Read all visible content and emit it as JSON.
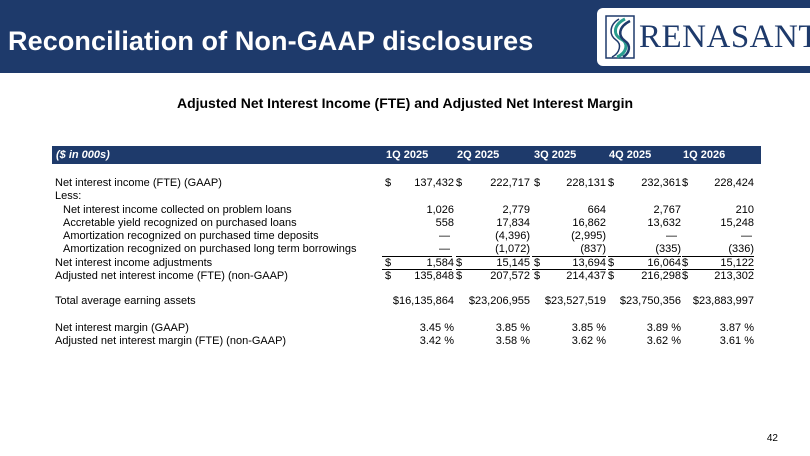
{
  "header": {
    "title": "Reconciliation of Non-GAAP disclosures",
    "logo_text": "RENASANT",
    "logo_icon": "renasant-logo-icon",
    "colors": {
      "header_bg": "#1e3a6b",
      "logo_accent": "#2a9d8f"
    }
  },
  "subtitle": "Adjusted Net Interest Income (FTE) and Adjusted Net Interest Margin",
  "table": {
    "columns": [
      "($ in 000s)",
      "1Q 2025",
      "2Q 2025",
      "3Q 2025",
      "4Q 2025",
      "1Q 2026"
    ],
    "rows": [
      {
        "label": "Net interest income (FTE) (GAAP)",
        "cells": [
          "137,432",
          "222,717",
          "228,131",
          "232,361",
          "228,424"
        ],
        "currency": "$"
      },
      {
        "label": "Less:",
        "cells": [
          "",
          "",
          "",
          "",
          ""
        ]
      },
      {
        "label": "Net interest income collected on problem loans",
        "cells": [
          "1,026",
          "2,779",
          "664",
          "2,767",
          "210"
        ]
      },
      {
        "label": "Accretable yield recognized on purchased loans",
        "cells": [
          "558",
          "17,834",
          "16,862",
          "13,632",
          "15,248"
        ]
      },
      {
        "label": "Amortization recognized on purchased time deposits",
        "cells": [
          "—",
          "(4,396)",
          "(2,995)",
          "—",
          "—"
        ]
      },
      {
        "label": "Amortization recognized on purchased long term borrowings",
        "cells": [
          "—",
          "(1,072)",
          "(837)",
          "(335)",
          "(336)"
        ]
      },
      {
        "label": "Net interest income adjustments",
        "cells": [
          "1,584",
          "15,145",
          "13,694",
          "16,064",
          "15,122"
        ],
        "currency": "$"
      },
      {
        "label": "Adjusted net interest income (FTE) (non-GAAP)",
        "cells": [
          "135,848",
          "207,572",
          "214,437",
          "216,298",
          "213,302"
        ],
        "currency": "$"
      },
      {
        "label": "Total average earning assets",
        "cells": [
          "$16,135,864",
          "$23,206,955",
          "$23,527,519",
          "$23,750,356",
          "$23,883,997"
        ]
      },
      {
        "label": "Net interest margin (GAAP)",
        "cells": [
          "3.45 %",
          "3.85 %",
          "3.85 %",
          "3.89 %",
          "3.87 %"
        ]
      },
      {
        "label": "Adjusted net interest margin (FTE) (non-GAAP)",
        "cells": [
          "3.42 %",
          "3.58 %",
          "3.62 %",
          "3.62 %",
          "3.61 %"
        ]
      }
    ]
  },
  "page_number": "42"
}
